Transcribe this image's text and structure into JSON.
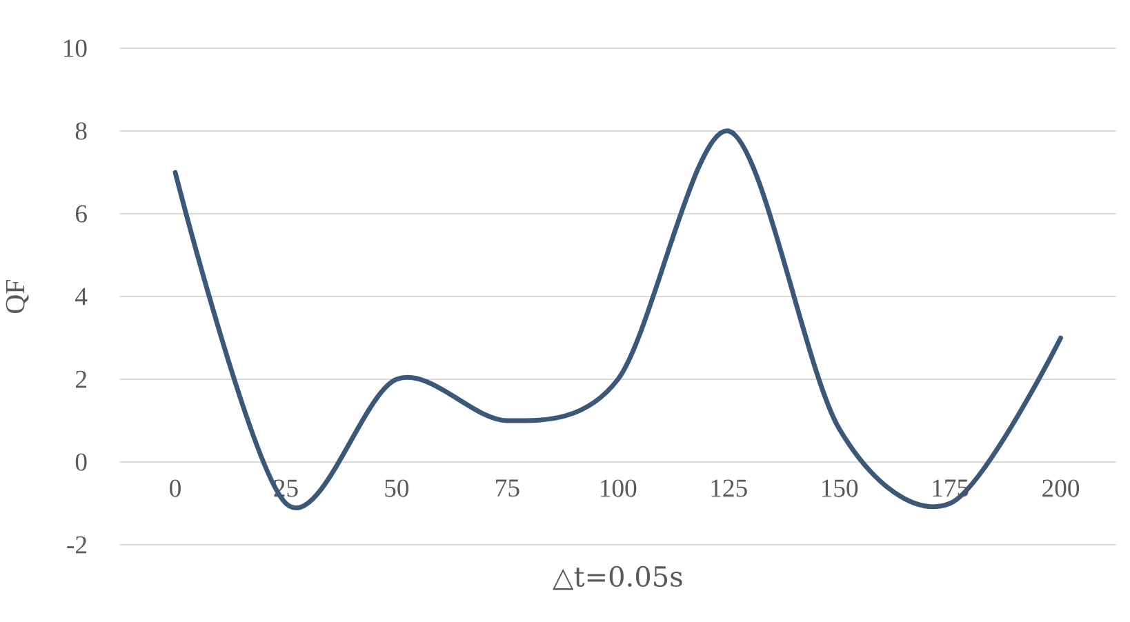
{
  "chart_data": {
    "type": "line",
    "xlabel": "△t=0.05s",
    "ylabel": "QF",
    "categories": [
      "0",
      "25",
      "50",
      "75",
      "100",
      "125",
      "150",
      "175",
      "200"
    ],
    "series": [
      {
        "color": "#3b5878",
        "values": [
          7,
          -1,
          2,
          1,
          2,
          8,
          0.8,
          -1,
          3
        ]
      }
    ],
    "ylim": [
      -2,
      10
    ],
    "yticks": [
      -2,
      0,
      2,
      4,
      6,
      8,
      10
    ],
    "grid": "y",
    "marker": "none",
    "line_style": "solid"
  }
}
